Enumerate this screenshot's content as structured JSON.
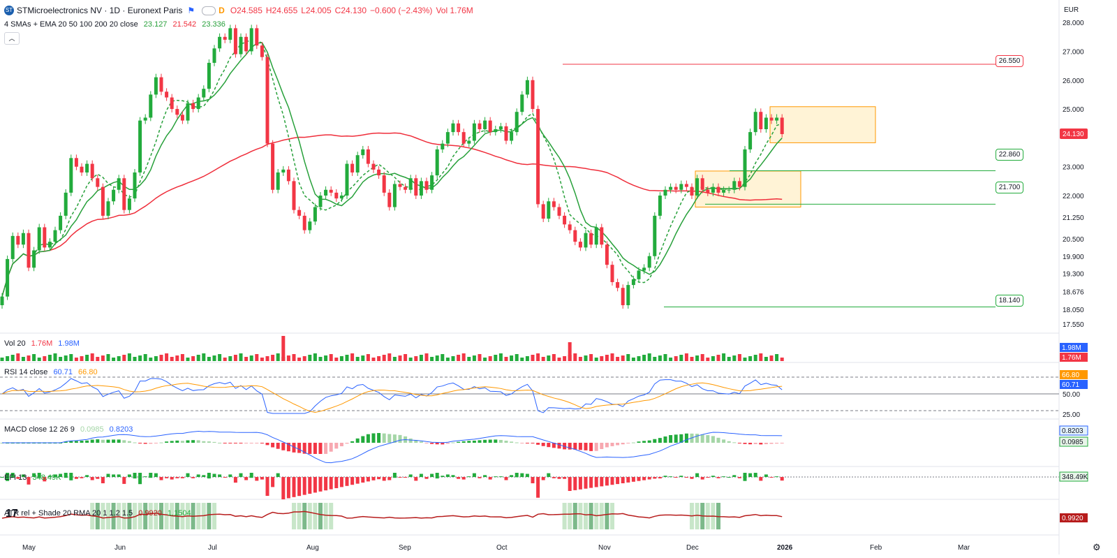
{
  "header": {
    "symbol_title": "STMicroelectronics NV · 1D · Euronext Paris",
    "open": "O24.585",
    "high": "H24.655",
    "low": "L24.005",
    "close": "C24.130",
    "change": "−0.600 (−2.43%)",
    "volume": "Vol 1.76M",
    "currency": "EUR",
    "delayed_badge": "D"
  },
  "indicators": {
    "ma": {
      "label": "4 SMAs + EMA 20 50 100 200 20 close",
      "v1": "23.127",
      "v2": "21.542",
      "v3": "23.336"
    },
    "vol": {
      "label": "Vol 20",
      "v1": "1.76M",
      "v2": "1.98M"
    },
    "rsi": {
      "label": "RSI 14 close",
      "v1": "60.71",
      "v2": "66.80"
    },
    "macd": {
      "label": "MACD close 12 26 9",
      "v1": "0.0985",
      "v2": "0.8203"
    },
    "efi": {
      "label": "EFI 13",
      "v1": "348.49K"
    },
    "atr": {
      "label": "ATR rel + Shade 20 RMA 20 1 1.2 1.5",
      "v1": "0.9920",
      "v2": "1.1504"
    }
  },
  "colors": {
    "up": "#089981",
    "up_bar": "#22ab3c",
    "down": "#f23645",
    "blue": "#2962ff",
    "orange": "#ff9800",
    "ma_green": "#27a03a",
    "ma_red": "#ef2d3a"
  },
  "chart_data": {
    "type": "candlestick",
    "title": "STMicroelectronics NV · 1D · Euronext Paris",
    "currency": "EUR",
    "x_labels": [
      "May",
      "Jun",
      "Jul",
      "Aug",
      "Sep",
      "Oct",
      "Nov",
      "Dec",
      "2026",
      "Feb",
      "Mar"
    ],
    "y_ticks": [
      "28.000",
      "27.000",
      "26.000",
      "25.000",
      "24.130",
      "23.000",
      "22.000",
      "21.250",
      "20.500",
      "19.900",
      "19.300",
      "18.676",
      "18.050",
      "17.550"
    ],
    "price_lines": [
      "26.550",
      "22.860",
      "21.700",
      "18.140"
    ],
    "last_price": "24.130",
    "rsi_scale": [
      "50.00",
      "25.00"
    ],
    "axis_badges": {
      "vol": [
        "1.98M",
        "1.76M"
      ],
      "rsi": [
        "66.80",
        "60.71"
      ],
      "macd": [
        "0.8203",
        "0.0985"
      ],
      "efi": [
        "348.49K"
      ],
      "atr": [
        "0.9920"
      ]
    },
    "closes": [
      18.5,
      19.8,
      20.6,
      20.3,
      20.7,
      19.5,
      20.1,
      20.9,
      20.2,
      20.4,
      20.8,
      21.3,
      22.1,
      23.3,
      23.0,
      22.8,
      23.1,
      22.6,
      22.3,
      21.3,
      21.8,
      22.2,
      22.6,
      21.5,
      21.9,
      22.8,
      24.6,
      24.7,
      25.5,
      26.1,
      25.6,
      25.4,
      25.0,
      24.8,
      24.6,
      25.2,
      25.0,
      25.4,
      25.7,
      26.6,
      27.1,
      27.5,
      27.4,
      27.8,
      26.9,
      27.5,
      27.0,
      27.8,
      27.2,
      26.8,
      23.8,
      22.2,
      22.8,
      22.9,
      22.5,
      21.5,
      21.3,
      20.8,
      21.1,
      21.6,
      22.0,
      22.2,
      22.1,
      21.9,
      22.0,
      23.1,
      22.8,
      23.4,
      23.6,
      23.1,
      22.9,
      22.7,
      22.1,
      21.6,
      22.4,
      22.3,
      22.2,
      22.6,
      22.0,
      22.5,
      22.2,
      22.7,
      23.6,
      23.8,
      24.2,
      24.5,
      24.2,
      23.8,
      23.9,
      24.5,
      24.3,
      24.6,
      24.2,
      24.3,
      24.4,
      23.9,
      24.2,
      24.9,
      25.5,
      26.0,
      25.0,
      21.7,
      21.2,
      21.8,
      21.6,
      21.3,
      21.0,
      20.8,
      20.4,
      20.2,
      20.7,
      20.3,
      20.9,
      20.3,
      19.6,
      19.0,
      18.8,
      18.2,
      18.9,
      19.1,
      19.4,
      19.5,
      19.9,
      21.3,
      22.0,
      22.2,
      22.3,
      22.2,
      22.4,
      22.3,
      22.0,
      22.6,
      22.2,
      22.1,
      22.3,
      22.1,
      22.2,
      22.2,
      22.5,
      22.3,
      23.6,
      24.2,
      24.9,
      24.3,
      24.7,
      24.6,
      24.7,
      24.13
    ]
  }
}
